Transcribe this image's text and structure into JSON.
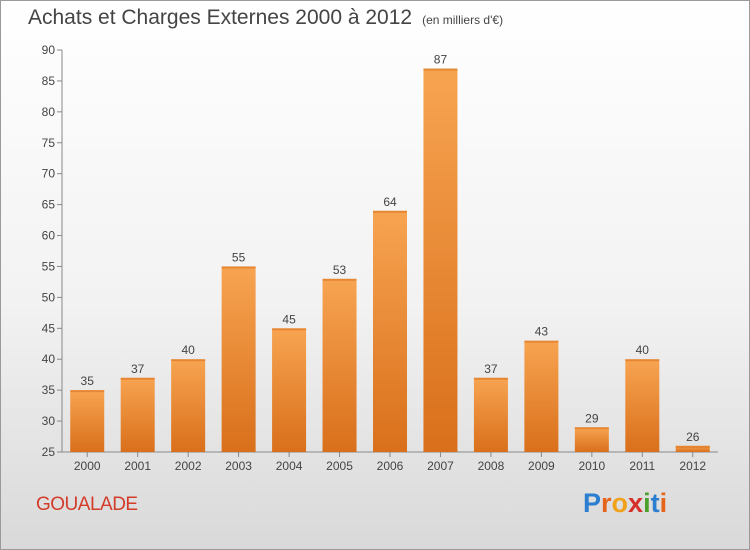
{
  "header": {
    "title": "Achats et Charges Externes 2000 à 2012",
    "unit": "(en milliers d'€)"
  },
  "footer": {
    "location": "GOUALADE",
    "brand_letters": [
      "P",
      "r",
      "o",
      "x",
      "i",
      "t",
      "i"
    ],
    "brand_colors": [
      "#2c7fd0",
      "#e5641b",
      "#f0a21a",
      "#d6302a",
      "#4aa02c",
      "#2c7fd0",
      "#e5641b"
    ]
  },
  "colors": {
    "bar_top": "#f7a451",
    "bar_bottom": "#d96f1b",
    "axis": "#888888",
    "text": "#444444",
    "location": "#d43c2a"
  },
  "chart_data": {
    "type": "bar",
    "title": "Achats et Charges Externes 2000 à 2012",
    "subtitle": "(en milliers d'€)",
    "categories": [
      "2000",
      "2001",
      "2002",
      "2003",
      "2004",
      "2005",
      "2006",
      "2007",
      "2008",
      "2009",
      "2010",
      "2011",
      "2012"
    ],
    "values": [
      35,
      37,
      40,
      55,
      45,
      53,
      64,
      87,
      37,
      43,
      29,
      40,
      26
    ],
    "ylim": [
      25,
      90
    ],
    "yticks": [
      25,
      30,
      35,
      40,
      45,
      50,
      55,
      60,
      65,
      70,
      75,
      80,
      85,
      90
    ],
    "grid": false,
    "data_labels": true
  }
}
